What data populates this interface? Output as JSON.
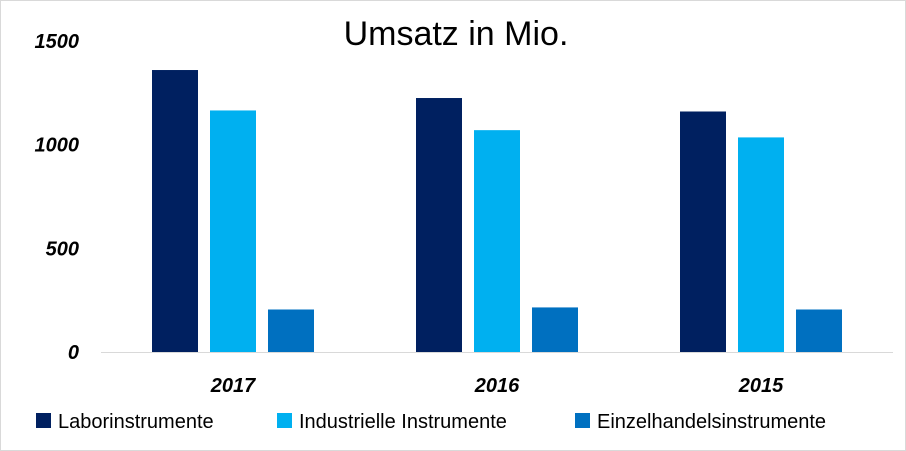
{
  "chart_data": {
    "type": "bar",
    "title": "Umsatz in Mio.",
    "xlabel": "",
    "ylabel": "",
    "categories": [
      "2017",
      "2016",
      "2015"
    ],
    "series": [
      {
        "name": "Laborinstrumente",
        "color": "#002060",
        "values": [
          1360,
          1225,
          1160
        ]
      },
      {
        "name": "Industrielle Instrumente",
        "color": "#00b0f0",
        "values": [
          1165,
          1070,
          1035
        ]
      },
      {
        "name": "Einzelhandelsinstrumente",
        "color": "#0070c0",
        "values": [
          205,
          215,
          205
        ]
      }
    ],
    "ylim": [
      0,
      1500
    ],
    "yticks": [
      "0",
      "500",
      "1000",
      "1500"
    ],
    "grid": false,
    "legend_position": "bottom"
  }
}
